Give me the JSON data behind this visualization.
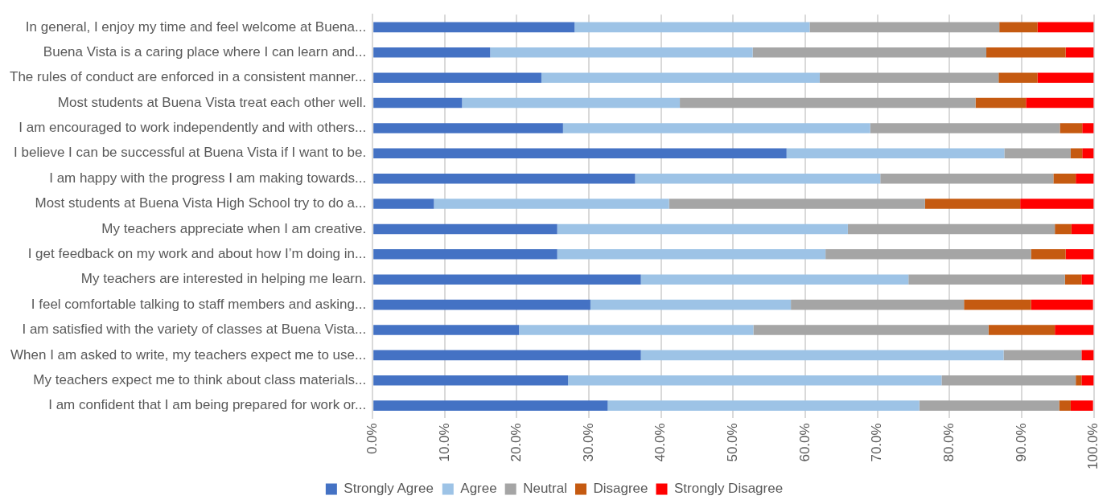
{
  "chart_data": {
    "type": "bar",
    "orientation": "horizontal",
    "stacked": true,
    "categories": [
      "In general, I enjoy my time and feel welcome at Buena...",
      "Buena Vista is a caring place where I can learn and...",
      "The rules of conduct are enforced in a consistent manner...",
      "Most students at Buena Vista treat each other well.",
      "I am encouraged to work independently and with others...",
      "I believe I can be successful at Buena Vista if I want to be.",
      "I am happy with the progress I am making towards...",
      "Most students at Buena Vista High School try to do a...",
      "My teachers appreciate when I am creative.",
      "I get feedback on my work and about how I’m doing in...",
      "My teachers are interested in helping me learn.",
      "I feel comfortable talking to staff members and asking...",
      "I am satisfied with the variety of classes at Buena Vista...",
      "When I am asked to write, my teachers expect me to use...",
      "My teachers expect me to think about class materials...",
      "I am confident that I am being prepared for work or..."
    ],
    "series": [
      {
        "name": "Strongly Agree",
        "color": "#4472c4",
        "values": [
          28.0,
          16.3,
          23.4,
          12.4,
          26.4,
          57.4,
          36.4,
          8.5,
          25.6,
          25.6,
          37.2,
          30.2,
          20.3,
          37.2,
          27.1,
          32.6
        ]
      },
      {
        "name": "Agree",
        "color": "#9dc3e6",
        "values": [
          32.6,
          36.4,
          38.6,
          30.2,
          42.6,
          30.2,
          34.0,
          32.6,
          40.3,
          37.2,
          37.1,
          27.8,
          32.5,
          50.3,
          51.8,
          43.2
        ]
      },
      {
        "name": "Neutral",
        "color": "#a5a5a5",
        "values": [
          26.3,
          32.4,
          24.8,
          41.0,
          26.3,
          9.2,
          24.0,
          35.5,
          28.7,
          28.5,
          21.7,
          24.0,
          32.6,
          10.8,
          18.6,
          19.4
        ]
      },
      {
        "name": "Disagree",
        "color": "#c55a11",
        "values": [
          5.3,
          11.0,
          5.4,
          7.0,
          3.1,
          1.6,
          3.1,
          13.2,
          2.3,
          4.8,
          2.3,
          9.3,
          9.2,
          0,
          0.8,
          1.6
        ]
      },
      {
        "name": "Strongly Disagree",
        "color": "#ff0000",
        "values": [
          7.8,
          3.9,
          7.8,
          9.4,
          1.6,
          1.6,
          2.5,
          10.2,
          3.1,
          3.9,
          1.7,
          8.6,
          5.4,
          1.7,
          1.7,
          3.1
        ]
      }
    ],
    "xlim": [
      0,
      100
    ],
    "xticks": [
      {
        "value": 0,
        "label": "0.0%"
      },
      {
        "value": 10,
        "label": "10.0%"
      },
      {
        "value": 20,
        "label": "20.0%"
      },
      {
        "value": 30,
        "label": "30.0%"
      },
      {
        "value": 40,
        "label": "40.0%"
      },
      {
        "value": 50,
        "label": "50.0%"
      },
      {
        "value": 60,
        "label": "60.0%"
      },
      {
        "value": 70,
        "label": "70.0%"
      },
      {
        "value": 80,
        "label": "80.0%"
      },
      {
        "value": 90,
        "label": "90.0%"
      },
      {
        "value": 100,
        "label": "100.0%"
      }
    ],
    "grid": "x",
    "legend": "bottom"
  }
}
